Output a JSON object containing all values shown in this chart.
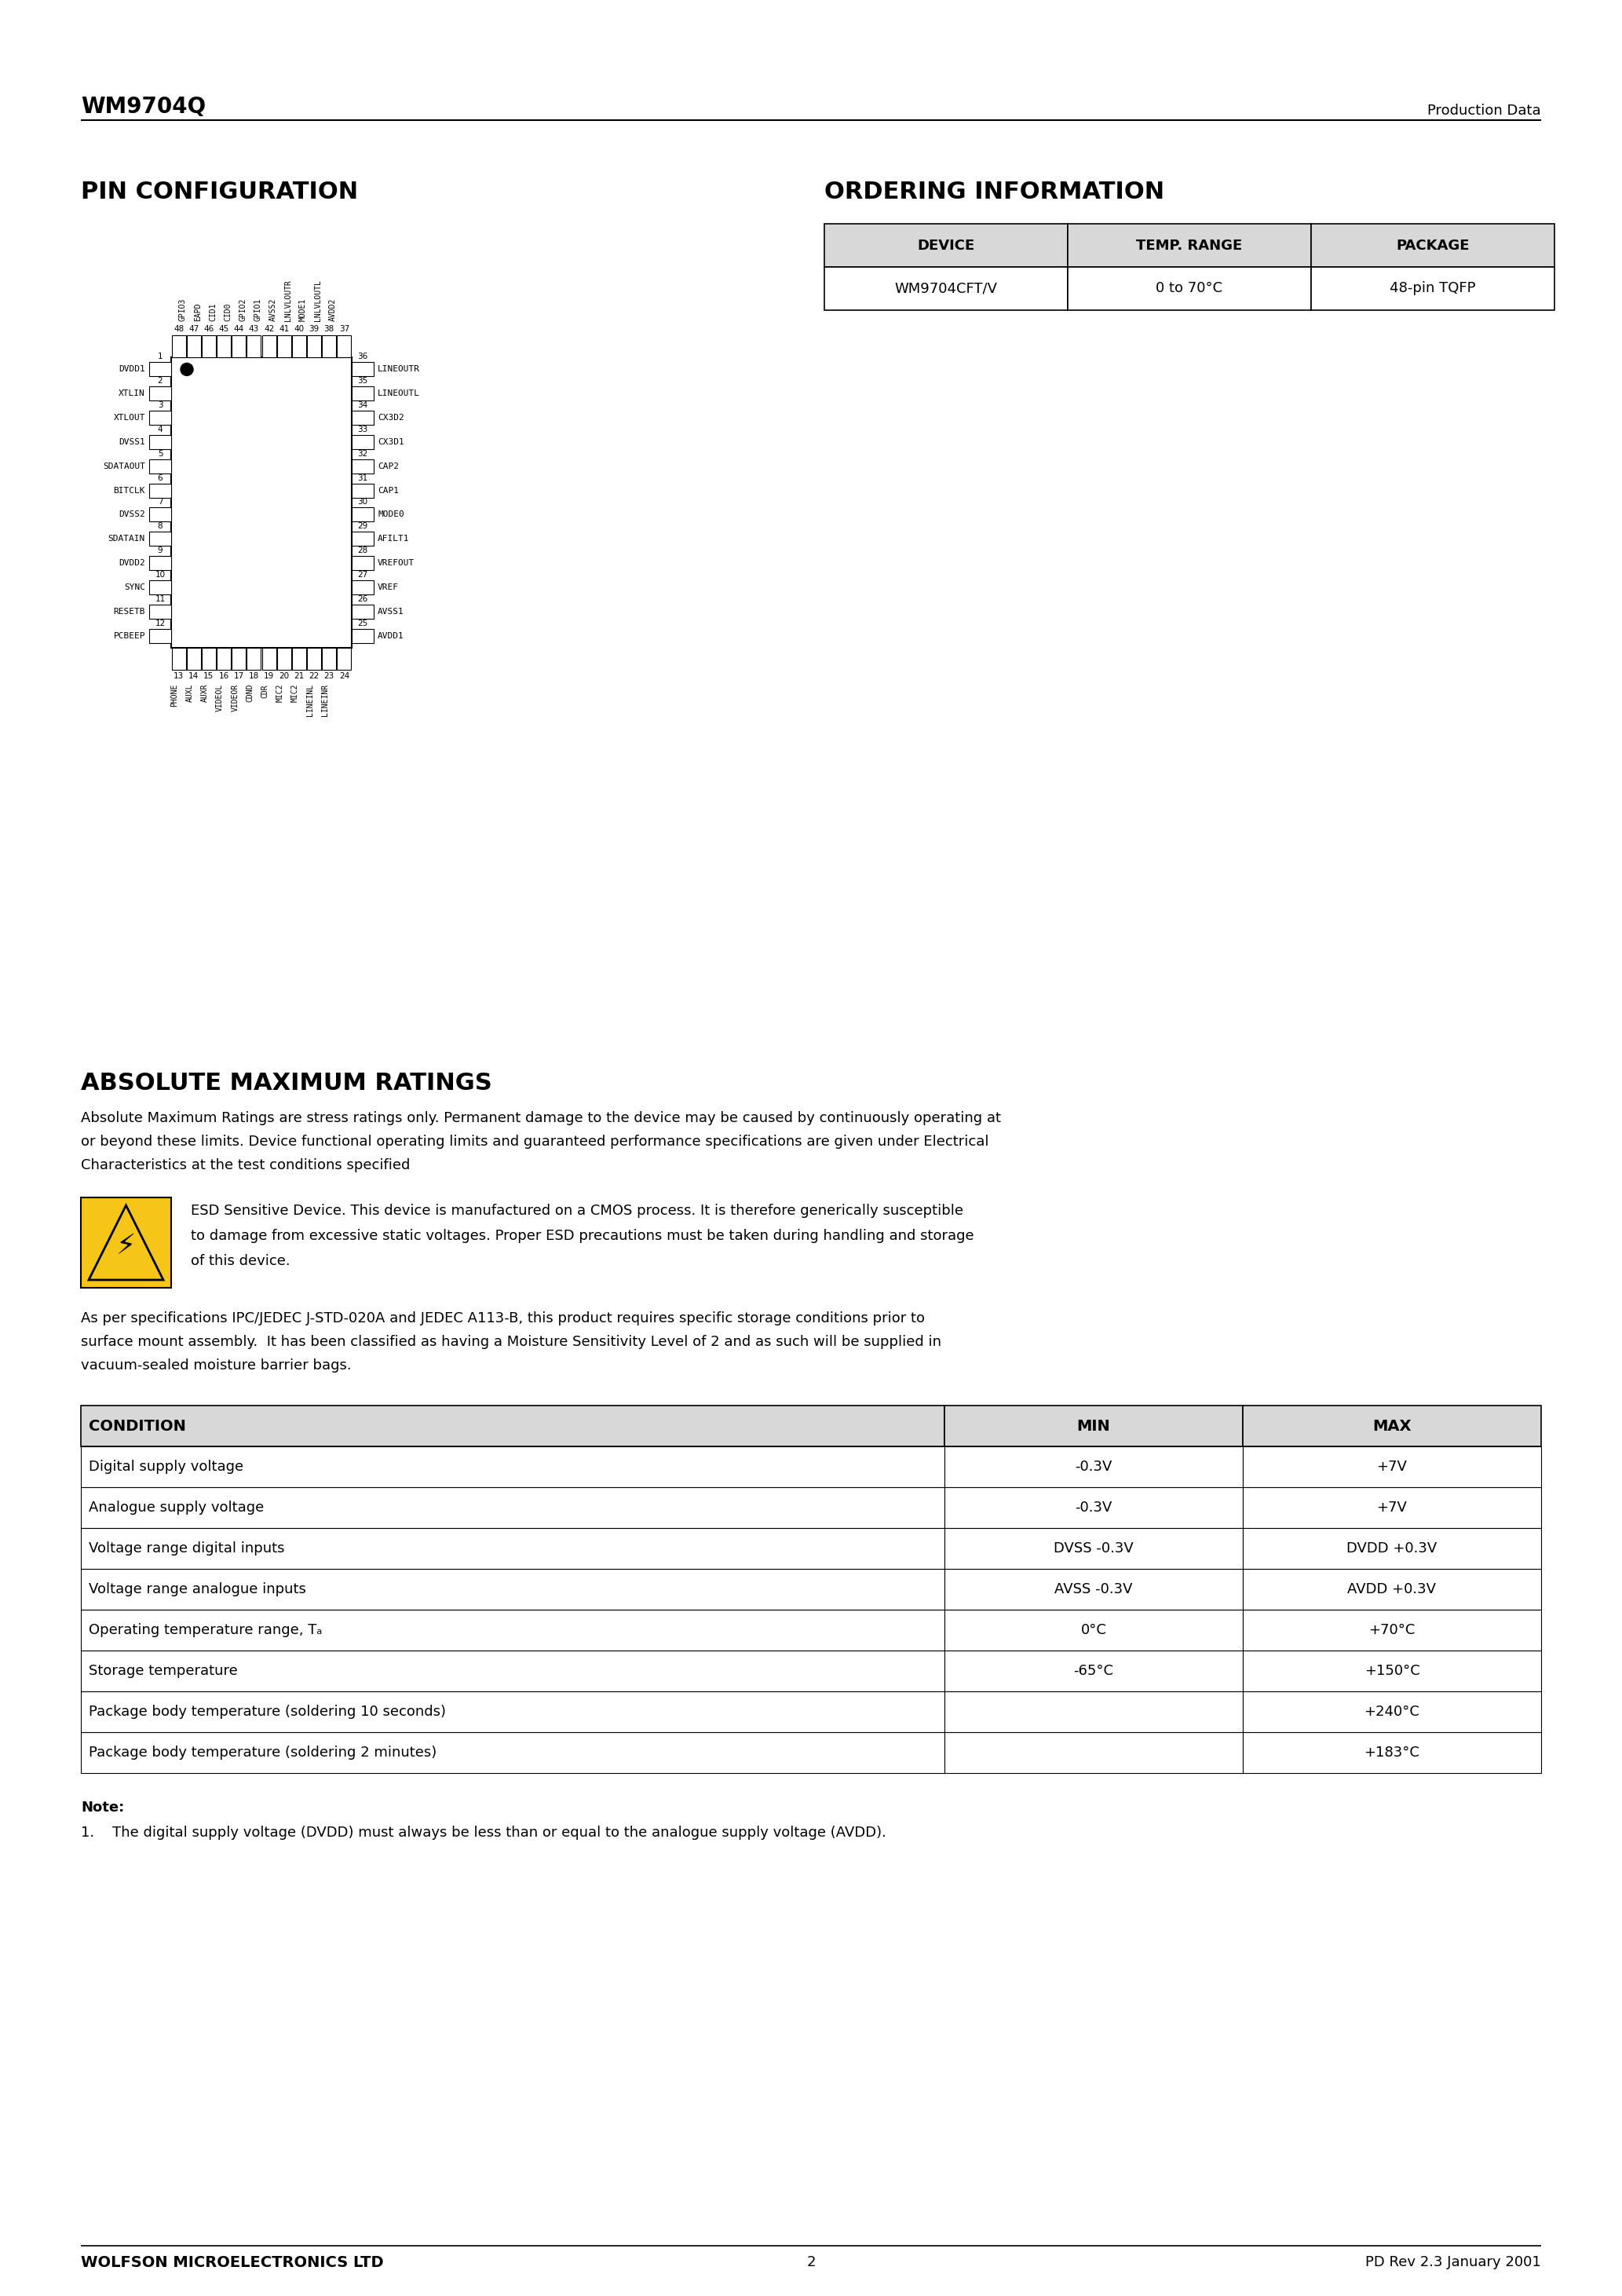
{
  "page_title_left": "WM9704Q",
  "page_title_right": "Production Data",
  "section1_title": "PIN CONFIGURATION",
  "section2_title": "ORDERING INFORMATION",
  "section3_title": "ABSOLUTE MAXIMUM RATINGS",
  "footer_left": "WOLFSON MICROELECTRONICS LTD",
  "footer_right": "PD Rev 2.3 January 2001",
  "footer_page": "2",
  "ordering_headers": [
    "DEVICE",
    "TEMP. RANGE",
    "PACKAGE"
  ],
  "ordering_row": [
    "WM9704CFT/V",
    "0 to 70°C",
    "48-pin TQFP"
  ],
  "abs_max_intro_lines": [
    "Absolute Maximum Ratings are stress ratings only. Permanent damage to the device may be caused by continuously operating at",
    "or beyond these limits. Device functional operating limits and guaranteed performance specifications are given under Electrical",
    "Characteristics at the test conditions specified"
  ],
  "esd_text_lines": [
    "ESD Sensitive Device. This device is manufactured on a CMOS process. It is therefore generically susceptible",
    "to damage from excessive static voltages. Proper ESD precautions must be taken during handling and storage",
    "of this device."
  ],
  "ipc_text_lines": [
    "As per specifications IPC/JEDEC J-STD-020A and JEDEC A113-B, this product requires specific storage conditions prior to",
    "surface mount assembly.  It has been classified as having a Moisture Sensitivity Level of 2 and as such will be supplied in",
    "vacuum-sealed moisture barrier bags."
  ],
  "abs_max_headers": [
    "CONDITION",
    "MIN",
    "MAX"
  ],
  "abs_max_rows": [
    [
      "Digital supply voltage",
      "-0.3V",
      "+7V"
    ],
    [
      "Analogue supply voltage",
      "-0.3V",
      "+7V"
    ],
    [
      "Voltage range digital inputs",
      "DVSS -0.3V",
      "DVDD +0.3V"
    ],
    [
      "Voltage range analogue inputs",
      "AVSS -0.3V",
      "AVDD +0.3V"
    ],
    [
      "Operating temperature range, Tₐ",
      "0°C",
      "+70°C"
    ],
    [
      "Storage temperature",
      "-65°C",
      "+150°C"
    ],
    [
      "Package body temperature (soldering 10 seconds)",
      "",
      "+240°C"
    ],
    [
      "Package body temperature (soldering 2 minutes)",
      "",
      "+183°C"
    ]
  ],
  "note_title": "Note:",
  "note_items": [
    "1.    The digital supply voltage (DVDD) must always be less than or equal to the analogue supply voltage (AVDD)."
  ],
  "left_pins": [
    [
      "DVDD1",
      "1"
    ],
    [
      "XTLIN",
      "2"
    ],
    [
      "XTLOUT",
      "3"
    ],
    [
      "DVSS1",
      "4"
    ],
    [
      "SDATAOUT",
      "5"
    ],
    [
      "BITCLK",
      "6"
    ],
    [
      "DVSS2",
      "7"
    ],
    [
      "SDATAIN",
      "8"
    ],
    [
      "DVDD2",
      "9"
    ],
    [
      "SYNC",
      "10"
    ],
    [
      "RESETB",
      "11"
    ],
    [
      "PCBEEP",
      "12"
    ]
  ],
  "right_pins": [
    [
      "LINEOUTR",
      "36"
    ],
    [
      "LINEOUTL",
      "35"
    ],
    [
      "CX3D2",
      "34"
    ],
    [
      "CX3D1",
      "33"
    ],
    [
      "CAP2",
      "32"
    ],
    [
      "CAP1",
      "31"
    ],
    [
      "MODE0",
      "30"
    ],
    [
      "AFILT1",
      "29"
    ],
    [
      "VREFOUT",
      "28"
    ],
    [
      "VREF",
      "27"
    ],
    [
      "AVSS1",
      "26"
    ],
    [
      "AVDD1",
      "25"
    ]
  ],
  "bottom_pins": [
    [
      "PHONE",
      "13"
    ],
    [
      "AUXL",
      "14"
    ],
    [
      "AUXR",
      "15"
    ],
    [
      "VIDEOL",
      "16"
    ],
    [
      "VIDEOR",
      "17"
    ],
    [
      "CDND",
      "18"
    ],
    [
      "CDR",
      "19"
    ],
    [
      "MIC2",
      "20"
    ],
    [
      "MIC2",
      "21"
    ],
    [
      "LINEINL",
      "22"
    ],
    [
      "LINEINR",
      "23"
    ],
    [
      "",
      "24"
    ]
  ],
  "top_pins": [
    [
      "GPIO3",
      "48"
    ],
    [
      "EAPD",
      "47"
    ],
    [
      "CID1",
      "46"
    ],
    [
      "CID0",
      "45"
    ],
    [
      "GPIO2",
      "44"
    ],
    [
      "GPIO1",
      "43"
    ],
    [
      "AVSS2",
      "42"
    ],
    [
      "LNLVLOUTR",
      "41"
    ],
    [
      "MODE1",
      "40"
    ],
    [
      "LNLVLOUTL",
      "39"
    ],
    [
      "AVDD2",
      "38"
    ],
    [
      "",
      "37"
    ]
  ],
  "background_color": "#ffffff"
}
